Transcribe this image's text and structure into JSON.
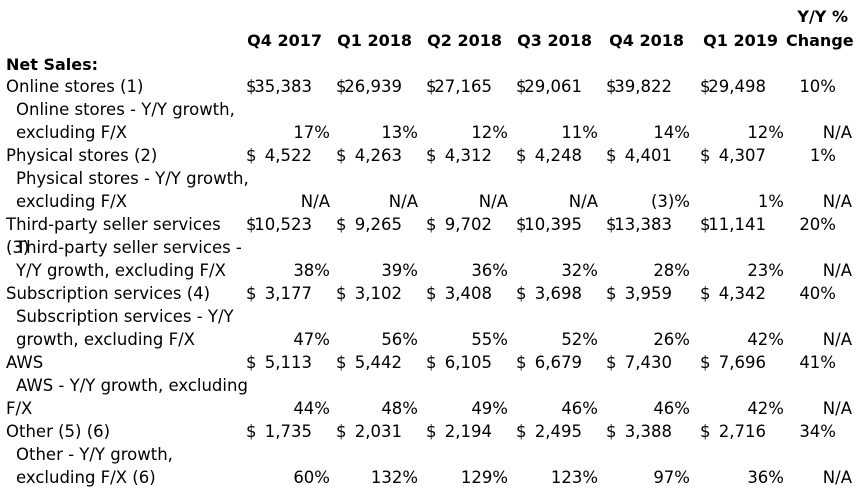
{
  "headers": {
    "periods": [
      "Q4 2017",
      "Q1 2018",
      "Q2 2018",
      "Q3 2018",
      "Q4 2018",
      "Q1 2019"
    ],
    "change_top": "Y/Y %",
    "change_bottom": "Change"
  },
  "section_title": "Net Sales:",
  "rows": [
    {
      "label_lines": [
        "Online stores (1)"
      ],
      "dollars": true,
      "values": [
        "35,383",
        "26,939",
        "27,165",
        "29,061",
        "39,822",
        "29,498"
      ],
      "change": "10%"
    },
    {
      "label_lines": [
        "Online stores - Y/Y growth,",
        "excluding F/X"
      ],
      "dollars": false,
      "values": [
        "17%",
        "13%",
        "12%",
        "11%",
        "14%",
        "12%"
      ],
      "change": "N/A"
    },
    {
      "label_lines": [
        "Physical stores (2)"
      ],
      "dollars": true,
      "values": [
        "4,522",
        "4,263",
        "4,312",
        "4,248",
        "4,401",
        "4,307"
      ],
      "change": "1%"
    },
    {
      "label_lines": [
        "Physical stores - Y/Y growth,",
        "excluding F/X"
      ],
      "dollars": false,
      "values": [
        "N/A",
        "N/A",
        "N/A",
        "N/A",
        "(3)%",
        "1%"
      ],
      "change": "N/A"
    },
    {
      "label_lines": [
        "Third-party seller services (3)"
      ],
      "dollars": true,
      "values": [
        "10,523",
        "9,265",
        "9,702",
        "10,395",
        "13,383",
        "11,141"
      ],
      "change": "20%"
    },
    {
      "label_lines": [
        "Third-party seller services -",
        "Y/Y growth, excluding F/X"
      ],
      "dollars": false,
      "values": [
        "38%",
        "39%",
        "36%",
        "32%",
        "28%",
        "23%"
      ],
      "change": "N/A"
    },
    {
      "label_lines": [
        "Subscription services (4)"
      ],
      "dollars": true,
      "values": [
        "3,177",
        "3,102",
        "3,408",
        "3,698",
        "3,959",
        "4,342"
      ],
      "change": "40%"
    },
    {
      "label_lines": [
        "Subscription services - Y/Y",
        "growth, excluding F/X"
      ],
      "dollars": false,
      "values": [
        "47%",
        "56%",
        "55%",
        "52%",
        "26%",
        "42%"
      ],
      "change": "N/A"
    },
    {
      "label_lines": [
        "AWS"
      ],
      "dollars": true,
      "values": [
        "5,113",
        "5,442",
        "6,105",
        "6,679",
        "7,430",
        "7,696"
      ],
      "change": "41%"
    },
    {
      "label_lines": [
        "AWS - Y/Y growth, excluding",
        "F/X"
      ],
      "dollars": false,
      "values": [
        "44%",
        "48%",
        "49%",
        "46%",
        "46%",
        "42%"
      ],
      "change": "N/A"
    },
    {
      "label_lines": [
        "Other (5) (6)"
      ],
      "dollars": true,
      "values": [
        "1,735",
        "2,031",
        "2,194",
        "2,495",
        "3,388",
        "2,716"
      ],
      "change": "34%"
    },
    {
      "label_lines": [
        "Other - Y/Y growth,",
        "excluding F/X (6)"
      ],
      "dollars": false,
      "values": [
        "60%",
        "132%",
        "129%",
        "123%",
        "97%",
        "36%"
      ],
      "change": "N/A"
    }
  ],
  "currency_symbol": "$"
}
